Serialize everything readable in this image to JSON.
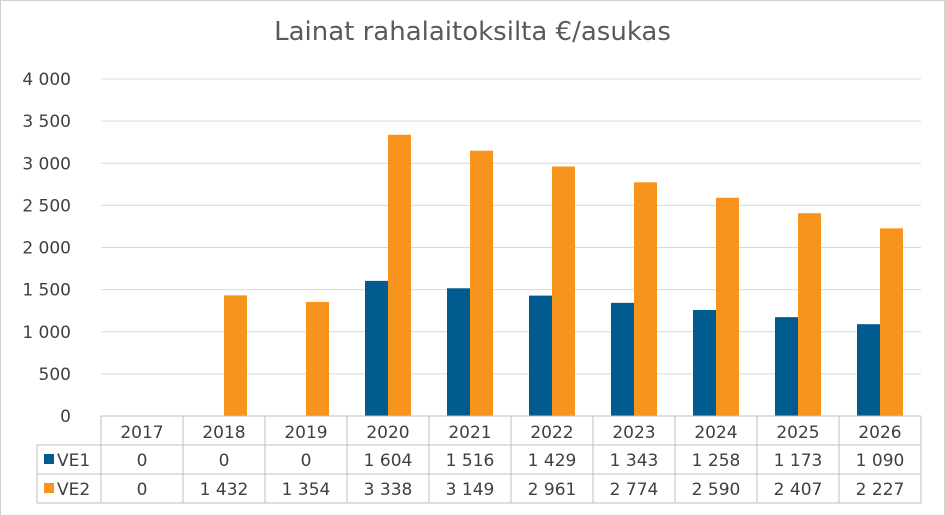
{
  "chart_data": {
    "type": "bar",
    "title": "Lainat rahalaitoksilta €/asukas",
    "categories": [
      "2017",
      "2018",
      "2019",
      "2020",
      "2021",
      "2022",
      "2023",
      "2024",
      "2025",
      "2026"
    ],
    "series": [
      {
        "name": "VE1",
        "color": "#005c8f",
        "values": [
          0,
          0,
          0,
          1604,
          1516,
          1429,
          1343,
          1258,
          1173,
          1090
        ],
        "labels": [
          "0",
          "0",
          "0",
          "1 604",
          "1 516",
          "1 429",
          "1 343",
          "1 258",
          "1 173",
          "1 090"
        ]
      },
      {
        "name": "VE2",
        "color": "#f7941d",
        "values": [
          0,
          1432,
          1354,
          3338,
          3149,
          2961,
          2774,
          2590,
          2407,
          2227
        ],
        "labels": [
          "0",
          "1 432",
          "1 354",
          "3 338",
          "3 149",
          "2 961",
          "2 774",
          "2 590",
          "2 407",
          "2 227"
        ]
      }
    ],
    "ylim": [
      0,
      4000
    ],
    "yticks": [
      0,
      500,
      1000,
      1500,
      2000,
      2500,
      3000,
      3500,
      4000
    ],
    "ytick_labels": [
      "0",
      "500",
      "1 000",
      "1 500",
      "2 000",
      "2 500",
      "3 000",
      "3 500",
      "4 000"
    ],
    "grid": true,
    "legend": "data-table",
    "xlabel": "",
    "ylabel": ""
  }
}
